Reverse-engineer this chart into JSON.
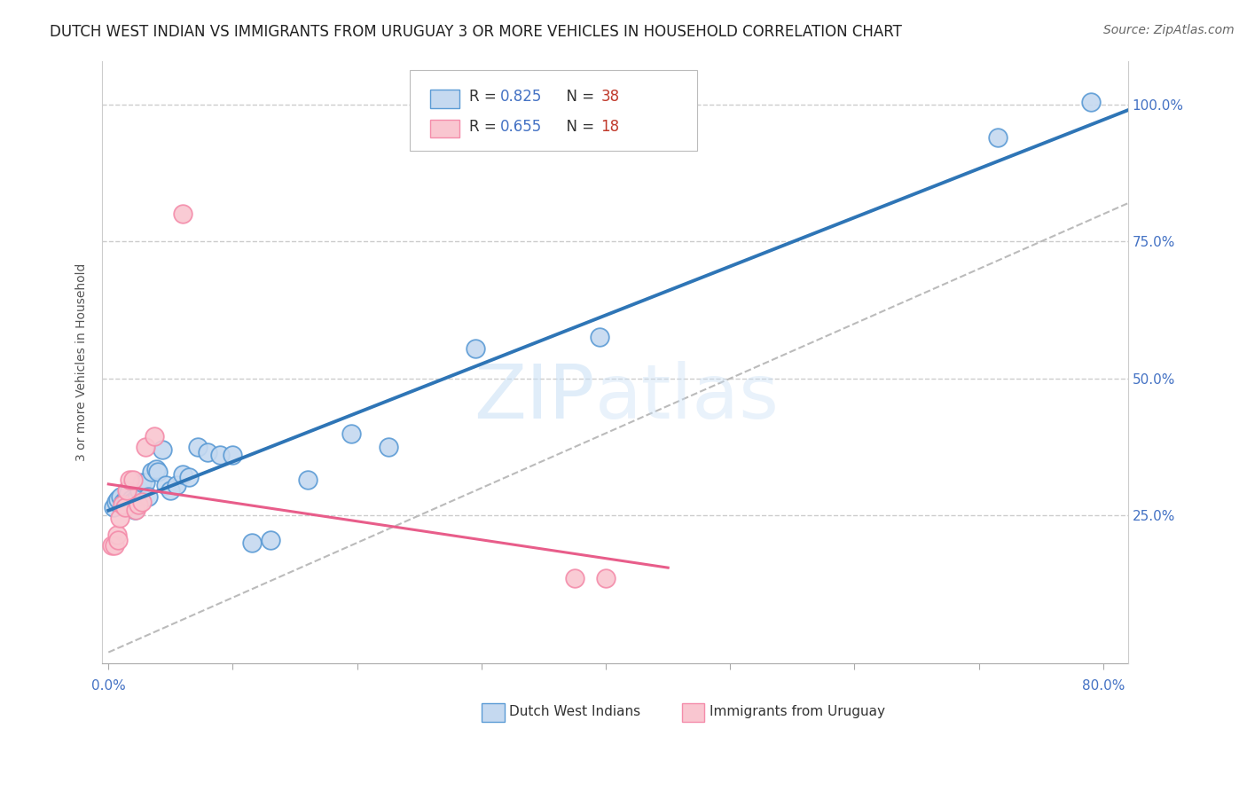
{
  "title": "DUTCH WEST INDIAN VS IMMIGRANTS FROM URUGUAY 3 OR MORE VEHICLES IN HOUSEHOLD CORRELATION CHART",
  "source": "Source: ZipAtlas.com",
  "ylabel": "3 or more Vehicles in Household",
  "xlim": [
    0.0,
    0.82
  ],
  "ylim": [
    -0.02,
    1.08
  ],
  "blue_R": 0.825,
  "blue_N": 38,
  "pink_R": 0.655,
  "pink_N": 18,
  "blue_fill_color": "#c5d9f0",
  "pink_fill_color": "#f9c6d0",
  "blue_edge_color": "#5b9bd5",
  "pink_edge_color": "#f48caa",
  "blue_line_color": "#2e75b6",
  "pink_line_color": "#e85d8a",
  "dashed_line_color": "#bbbbbb",
  "axis_color": "#4472c4",
  "watermark_color": "#ddeeff",
  "grid_color": "#cccccc",
  "blue_x": [
    0.004,
    0.006,
    0.008,
    0.01,
    0.012,
    0.013,
    0.015,
    0.016,
    0.018,
    0.019,
    0.021,
    0.023,
    0.025,
    0.027,
    0.03,
    0.032,
    0.035,
    0.038,
    0.04,
    0.043,
    0.046,
    0.05,
    0.055,
    0.06,
    0.065,
    0.072,
    0.08,
    0.09,
    0.1,
    0.115,
    0.13,
    0.16,
    0.195,
    0.225,
    0.295,
    0.395,
    0.715,
    0.79
  ],
  "blue_y": [
    0.265,
    0.275,
    0.28,
    0.285,
    0.275,
    0.27,
    0.285,
    0.29,
    0.28,
    0.275,
    0.26,
    0.285,
    0.295,
    0.31,
    0.31,
    0.285,
    0.33,
    0.335,
    0.33,
    0.37,
    0.305,
    0.295,
    0.305,
    0.325,
    0.32,
    0.375,
    0.365,
    0.36,
    0.36,
    0.2,
    0.205,
    0.315,
    0.4,
    0.375,
    0.555,
    0.575,
    0.94,
    1.005
  ],
  "pink_x": [
    0.003,
    0.005,
    0.007,
    0.009,
    0.011,
    0.013,
    0.015,
    0.017,
    0.02,
    0.022,
    0.024,
    0.027,
    0.008,
    0.03,
    0.037,
    0.06,
    0.375,
    0.4
  ],
  "pink_y": [
    0.195,
    0.195,
    0.215,
    0.245,
    0.27,
    0.265,
    0.295,
    0.315,
    0.315,
    0.26,
    0.27,
    0.275,
    0.205,
    0.375,
    0.395,
    0.8,
    0.135,
    0.135
  ],
  "title_fontsize": 12,
  "axis_label_fontsize": 10,
  "tick_fontsize": 11,
  "legend_fontsize": 12,
  "source_fontsize": 10,
  "background_color": "#ffffff"
}
